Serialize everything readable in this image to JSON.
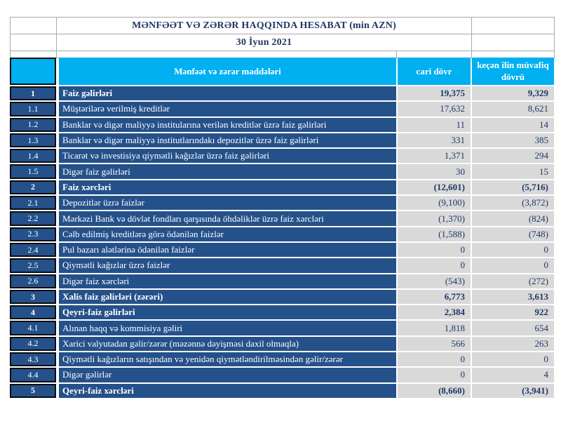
{
  "report": {
    "title": "MƏNFƏƏT VƏ ZƏRƏR HAQQINDA HESABAT (min AZN)",
    "date": "30 İyun 2021"
  },
  "table": {
    "columns": {
      "items": "Mənfəət və zərər maddələri",
      "current": "cari dövr",
      "previous": "keçən ilin müvafiq dövrü"
    },
    "rows": [
      {
        "no": "1",
        "label": "Faiz  gəlirləri",
        "current": "19,375",
        "previous": "9,329",
        "bold": true
      },
      {
        "no": "1.1",
        "label": "Müştərilərə verilmiş kreditlər",
        "current": "17,632",
        "previous": "8,621",
        "bold": false
      },
      {
        "no": "1.2",
        "label": "Banklar və digər maliyyə institularına verilən kreditlər üzrə faiz gəlirləri",
        "current": "11",
        "previous": "14",
        "bold": false
      },
      {
        "no": "1.3",
        "label": "Banklar və digər maliyyə institutlarındakı depozitlər üzrə faiz gəlirləri",
        "current": "331",
        "previous": "385",
        "bold": false
      },
      {
        "no": "1.4",
        "label": "Ticarət və investisiya qiymətli kağızlar üzrə faiz gəlirləri",
        "current": "1,371",
        "previous": "294",
        "bold": false
      },
      {
        "no": "1.5",
        "label": "Digər faiz gəlirləri",
        "current": "30",
        "previous": "15",
        "bold": false
      },
      {
        "no": "2",
        "label": "Faiz xərcləri",
        "current": "(12,601)",
        "previous": "(5,716)",
        "bold": true
      },
      {
        "no": "2.1",
        "label": "Depozitlər üzrə faizlər",
        "current": "(9,100)",
        "previous": "(3,872)",
        "bold": false
      },
      {
        "no": "2.2",
        "label": "Mərkəzi Bank və dövlət fondları qarşısında öhdəliklər üzrə faiz xərcləri",
        "current": "(1,370)",
        "previous": "(824)",
        "bold": false
      },
      {
        "no": "2.3",
        "label": "Cəlb edilmiş kreditlərə görə ödənilən faizlər",
        "current": "(1,588)",
        "previous": "(748)",
        "bold": false
      },
      {
        "no": "2.4",
        "label": "Pul bazarı alətlərinə ödənilən faizlər",
        "current": "0",
        "previous": "0",
        "bold": false
      },
      {
        "no": "2.5",
        "label": "Qiymətli kağızlar üzrə faizlər",
        "current": "0",
        "previous": "0",
        "bold": false
      },
      {
        "no": "2.6",
        "label": "Digər faiz xərcləri",
        "current": "(543)",
        "previous": "(272)",
        "bold": false
      },
      {
        "no": "3",
        "label": "Xalis faiz gəlirləri (zərəri)",
        "current": "6,773",
        "previous": "3,613",
        "bold": true
      },
      {
        "no": "4",
        "label": "Qeyri-faiz gəlirləri",
        "current": "2,384",
        "previous": "922",
        "bold": true
      },
      {
        "no": "4.1",
        "label": "Alınan haqq və kommisiya gəliri",
        "current": "1,818",
        "previous": "654",
        "bold": false
      },
      {
        "no": "4.2",
        "label": "Xarici valyutadan gəlir/zərər (məzənnə dəyişməsi daxil olmaqla)",
        "current": "566",
        "previous": "263",
        "bold": false
      },
      {
        "no": "4.3",
        "label": "Qiymətli kağızların satışından və yenidən qiymətləndirilməsindən gəlir/zərər",
        "current": "0",
        "previous": "0",
        "bold": false
      },
      {
        "no": "4.4",
        "label": "Digər gəlirlər",
        "current": "0",
        "previous": "4",
        "bold": false
      },
      {
        "no": "5",
        "label": "Qeyri-faiz xərcləri",
        "current": "(8,660)",
        "previous": "(3,941)",
        "bold": true
      }
    ]
  },
  "colors": {
    "header-bg": "#00B0F0",
    "row-bg": "#25518A",
    "value-bg": "#D9D9D9",
    "text-navy": "#1F3864",
    "border-dark": "#0D0D0D",
    "border-light": "#A9A9A9"
  }
}
